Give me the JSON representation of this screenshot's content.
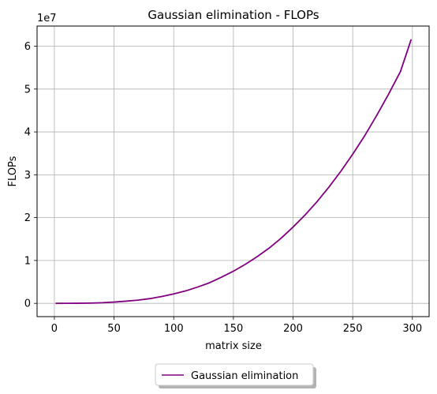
{
  "chart_data": {
    "type": "line",
    "title": "Gaussian elimination - FLOPs",
    "xlabel": "matrix size",
    "ylabel": "FLOPs",
    "offset_label": "1e7",
    "xlim": [
      -14.5,
      314
    ],
    "ylim": [
      -3100000,
      64700000
    ],
    "xticks": [
      0,
      50,
      100,
      150,
      200,
      250,
      300
    ],
    "xtick_labels": [
      "0",
      "50",
      "100",
      "150",
      "200",
      "250",
      "300"
    ],
    "yticks": [
      0,
      10000000,
      20000000,
      30000000,
      40000000,
      50000000,
      60000000
    ],
    "ytick_labels": [
      "0",
      "1",
      "2",
      "3",
      "4",
      "5",
      "6"
    ],
    "grid": true,
    "legend_position": "lower center, outside plot",
    "series": [
      {
        "name": "Gaussian elimination",
        "color": "#800080",
        "x": [
          1,
          10,
          20,
          30,
          40,
          50,
          60,
          70,
          80,
          90,
          100,
          110,
          120,
          130,
          140,
          150,
          160,
          170,
          180,
          190,
          200,
          210,
          220,
          230,
          240,
          250,
          260,
          270,
          280,
          290,
          299
        ],
        "y": [
          0,
          2000,
          18000,
          60000,
          140000,
          300000,
          500000,
          750000,
          1100000,
          1600000,
          2200000,
          2900000,
          3800000,
          4800000,
          6100000,
          7500000,
          9100000,
          10900000,
          12900000,
          15200000,
          17800000,
          20600000,
          23700000,
          27100000,
          30800000,
          34800000,
          39100000,
          43800000,
          48800000,
          54100000,
          61600000
        ]
      }
    ]
  }
}
